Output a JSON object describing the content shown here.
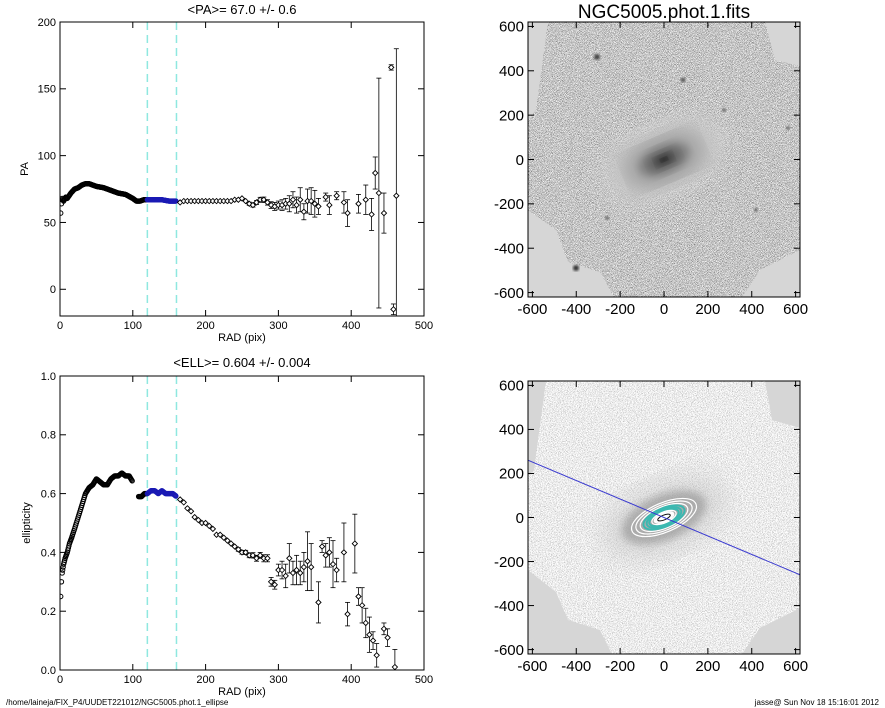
{
  "footer": {
    "path": "/home/laineja/FIX_P4/UUDET221012/NGC5005.phot.1_ellipse",
    "stamp": "jasse@  Sun Nov 18 15:16:01 2012"
  },
  "colors": {
    "guide": "#8fe8e0",
    "marker": "#1a1ab4",
    "majoraxis": "#3b3bd0",
    "contour_inner": "#3bb8b0"
  },
  "chart_data": [
    {
      "id": "pa",
      "type": "scatter",
      "title": "<PA>=  67.0 +/-   0.6",
      "xlabel": "RAD (pix)",
      "ylabel": "PA",
      "xlim": [
        0,
        500
      ],
      "ylim": [
        -20,
        200
      ],
      "xticks": [
        "0",
        "100",
        "200",
        "300",
        "400",
        "500"
      ],
      "xtick_values": [
        0,
        100,
        200,
        300,
        400,
        500
      ],
      "yticks": [
        "0",
        "50",
        "100",
        "150",
        "200"
      ],
      "ytick_values": [
        0,
        50,
        100,
        150,
        200
      ],
      "guides_x": [
        120,
        160
      ],
      "highlight_range": [
        120,
        160
      ],
      "dense_profile": {
        "x": [
          1,
          2,
          3,
          5,
          8,
          10,
          15,
          20,
          25,
          30,
          35,
          40,
          45,
          50,
          60,
          70,
          80,
          90,
          100,
          105,
          110,
          115,
          120,
          130,
          140,
          150,
          160
        ],
        "y": [
          57,
          64,
          68,
          66,
          69,
          68,
          72,
          75,
          76,
          78,
          79,
          79,
          78,
          77,
          76,
          74,
          72,
          71,
          68,
          66,
          66,
          67,
          67,
          67,
          67,
          66,
          66
        ]
      },
      "sparse_points": [
        {
          "x": 165,
          "y": 65,
          "err": 0.5
        },
        {
          "x": 170,
          "y": 66,
          "err": 0.5
        },
        {
          "x": 175,
          "y": 66,
          "err": 0.5
        },
        {
          "x": 180,
          "y": 66,
          "err": 0.5
        },
        {
          "x": 185,
          "y": 66,
          "err": 0.5
        },
        {
          "x": 190,
          "y": 66,
          "err": 0.5
        },
        {
          "x": 195,
          "y": 66,
          "err": 0.5
        },
        {
          "x": 200,
          "y": 66,
          "err": 0.5
        },
        {
          "x": 205,
          "y": 66,
          "err": 0.5
        },
        {
          "x": 210,
          "y": 66,
          "err": 0.5
        },
        {
          "x": 215,
          "y": 66,
          "err": 0.5
        },
        {
          "x": 220,
          "y": 66,
          "err": 0.5
        },
        {
          "x": 225,
          "y": 66,
          "err": 0.5
        },
        {
          "x": 230,
          "y": 66,
          "err": 0.6
        },
        {
          "x": 235,
          "y": 66,
          "err": 0.6
        },
        {
          "x": 240,
          "y": 67,
          "err": 0.7
        },
        {
          "x": 245,
          "y": 67,
          "err": 0.8
        },
        {
          "x": 250,
          "y": 68,
          "err": 1.0
        },
        {
          "x": 255,
          "y": 66,
          "err": 1.0
        },
        {
          "x": 260,
          "y": 64,
          "err": 1.2
        },
        {
          "x": 265,
          "y": 63,
          "err": 1.5
        },
        {
          "x": 270,
          "y": 65,
          "err": 1.5
        },
        {
          "x": 275,
          "y": 67,
          "err": 1.8
        },
        {
          "x": 280,
          "y": 67,
          "err": 2.0
        },
        {
          "x": 285,
          "y": 65,
          "err": 2.0
        },
        {
          "x": 290,
          "y": 63,
          "err": 2.5
        },
        {
          "x": 295,
          "y": 62,
          "err": 3.0
        },
        {
          "x": 300,
          "y": 63,
          "err": 3.0
        },
        {
          "x": 305,
          "y": 63,
          "err": 4.0
        },
        {
          "x": 310,
          "y": 64,
          "err": 4.0
        },
        {
          "x": 315,
          "y": 64,
          "err": 6.0
        },
        {
          "x": 320,
          "y": 67,
          "err": 6.0
        },
        {
          "x": 325,
          "y": 63,
          "err": 6.0
        },
        {
          "x": 330,
          "y": 67,
          "err": 9.0
        },
        {
          "x": 335,
          "y": 58,
          "err": 6.0
        },
        {
          "x": 340,
          "y": 66,
          "err": 9.0
        },
        {
          "x": 345,
          "y": 66,
          "err": 10.0
        },
        {
          "x": 350,
          "y": 64,
          "err": 10.0
        },
        {
          "x": 355,
          "y": 62,
          "err": 6.0
        },
        {
          "x": 365,
          "y": 69,
          "err": 3.0
        },
        {
          "x": 370,
          "y": 63,
          "err": 7.0
        },
        {
          "x": 380,
          "y": 70,
          "err": 3.0
        },
        {
          "x": 390,
          "y": 65,
          "err": 8.0
        },
        {
          "x": 395,
          "y": 57,
          "err": 10.0
        },
        {
          "x": 410,
          "y": 64,
          "err": 7.0
        },
        {
          "x": 420,
          "y": 67,
          "err": 11.0
        },
        {
          "x": 428,
          "y": 56,
          "err": 12.0
        },
        {
          "x": 433,
          "y": 87,
          "err": 12.0
        },
        {
          "x": 438,
          "y": 72,
          "err": 86.0
        },
        {
          "x": 445,
          "y": 57,
          "err": 15.0
        },
        {
          "x": 455,
          "y": 166,
          "err": 2.0
        },
        {
          "x": 458,
          "y": -15,
          "err": 4.0
        },
        {
          "x": 462,
          "y": 70,
          "err": 110.0
        }
      ]
    },
    {
      "id": "ell",
      "type": "scatter",
      "title": "<ELL>= 0.604 +/-  0.004",
      "xlabel": "RAD (pix)",
      "ylabel": "ellipticity",
      "xlim": [
        0,
        500
      ],
      "ylim": [
        0,
        1
      ],
      "xticks": [
        "0",
        "100",
        "200",
        "300",
        "400",
        "500"
      ],
      "xtick_values": [
        0,
        100,
        200,
        300,
        400,
        500
      ],
      "yticks": [
        "0.0",
        "0.2",
        "0.4",
        "0.6",
        "0.8",
        "1.0"
      ],
      "ytick_values": [
        0,
        0.2,
        0.4,
        0.6,
        0.8,
        1.0
      ],
      "guides_x": [
        120,
        160
      ],
      "highlight_range": [
        120,
        160
      ],
      "dense_profile": {
        "x": [
          1,
          2,
          3,
          5,
          7,
          10,
          13,
          16,
          20,
          25,
          30,
          35,
          40,
          45,
          50,
          55,
          60,
          65,
          70,
          75,
          80,
          85,
          90,
          95,
          100
        ],
        "y": [
          0.25,
          0.3,
          0.33,
          0.36,
          0.38,
          0.4,
          0.43,
          0.45,
          0.48,
          0.52,
          0.56,
          0.6,
          0.62,
          0.63,
          0.65,
          0.64,
          0.63,
          0.63,
          0.65,
          0.66,
          0.66,
          0.67,
          0.66,
          0.66,
          0.64
        ]
      },
      "dense_profile2": {
        "x": [
          108,
          112,
          116,
          120,
          125,
          130,
          135,
          140,
          145,
          150,
          155,
          160
        ],
        "y": [
          0.59,
          0.59,
          0.6,
          0.6,
          0.61,
          0.61,
          0.6,
          0.61,
          0.6,
          0.6,
          0.6,
          0.59
        ]
      },
      "sparse_points": [
        {
          "x": 165,
          "y": 0.58,
          "err": 0.003
        },
        {
          "x": 170,
          "y": 0.57,
          "err": 0.003
        },
        {
          "x": 175,
          "y": 0.55,
          "err": 0.003
        },
        {
          "x": 180,
          "y": 0.54,
          "err": 0.003
        },
        {
          "x": 185,
          "y": 0.52,
          "err": 0.003
        },
        {
          "x": 190,
          "y": 0.51,
          "err": 0.003
        },
        {
          "x": 195,
          "y": 0.5,
          "err": 0.003
        },
        {
          "x": 200,
          "y": 0.5,
          "err": 0.004
        },
        {
          "x": 205,
          "y": 0.49,
          "err": 0.004
        },
        {
          "x": 210,
          "y": 0.48,
          "err": 0.004
        },
        {
          "x": 215,
          "y": 0.46,
          "err": 0.004
        },
        {
          "x": 220,
          "y": 0.46,
          "err": 0.004
        },
        {
          "x": 225,
          "y": 0.45,
          "err": 0.005
        },
        {
          "x": 230,
          "y": 0.44,
          "err": 0.005
        },
        {
          "x": 235,
          "y": 0.43,
          "err": 0.005
        },
        {
          "x": 240,
          "y": 0.42,
          "err": 0.005
        },
        {
          "x": 245,
          "y": 0.41,
          "err": 0.006
        },
        {
          "x": 250,
          "y": 0.4,
          "err": 0.006
        },
        {
          "x": 255,
          "y": 0.4,
          "err": 0.007
        },
        {
          "x": 260,
          "y": 0.39,
          "err": 0.008
        },
        {
          "x": 265,
          "y": 0.39,
          "err": 0.009
        },
        {
          "x": 270,
          "y": 0.38,
          "err": 0.01
        },
        {
          "x": 275,
          "y": 0.39,
          "err": 0.01
        },
        {
          "x": 280,
          "y": 0.38,
          "err": 0.012
        },
        {
          "x": 285,
          "y": 0.38,
          "err": 0.012
        },
        {
          "x": 290,
          "y": 0.3,
          "err": 0.015
        },
        {
          "x": 295,
          "y": 0.29,
          "err": 0.015
        },
        {
          "x": 300,
          "y": 0.34,
          "err": 0.02
        },
        {
          "x": 305,
          "y": 0.34,
          "err": 0.03
        },
        {
          "x": 310,
          "y": 0.32,
          "err": 0.04
        },
        {
          "x": 315,
          "y": 0.38,
          "err": 0.05
        },
        {
          "x": 320,
          "y": 0.33,
          "err": 0.04
        },
        {
          "x": 325,
          "y": 0.34,
          "err": 0.05
        },
        {
          "x": 330,
          "y": 0.33,
          "err": 0.04
        },
        {
          "x": 335,
          "y": 0.35,
          "err": 0.05
        },
        {
          "x": 340,
          "y": 0.37,
          "err": 0.1
        },
        {
          "x": 345,
          "y": 0.35,
          "err": 0.08
        },
        {
          "x": 355,
          "y": 0.23,
          "err": 0.07
        },
        {
          "x": 360,
          "y": 0.42,
          "err": 0.02
        },
        {
          "x": 365,
          "y": 0.39,
          "err": 0.04
        },
        {
          "x": 370,
          "y": 0.4,
          "err": 0.05
        },
        {
          "x": 375,
          "y": 0.36,
          "err": 0.08
        },
        {
          "x": 380,
          "y": 0.34,
          "err": 0.04
        },
        {
          "x": 390,
          "y": 0.4,
          "err": 0.1
        },
        {
          "x": 395,
          "y": 0.19,
          "err": 0.04
        },
        {
          "x": 405,
          "y": 0.43,
          "err": 0.1
        },
        {
          "x": 410,
          "y": 0.25,
          "err": 0.03
        },
        {
          "x": 415,
          "y": 0.22,
          "err": 0.06
        },
        {
          "x": 420,
          "y": 0.16,
          "err": 0.05
        },
        {
          "x": 425,
          "y": 0.12,
          "err": 0.06
        },
        {
          "x": 430,
          "y": 0.1,
          "err": 0.03
        },
        {
          "x": 435,
          "y": 0.05,
          "err": 0.04
        },
        {
          "x": 445,
          "y": 0.14,
          "err": 0.02
        },
        {
          "x": 450,
          "y": 0.11,
          "err": 0.03
        },
        {
          "x": 460,
          "y": 0.01,
          "err": 0.06
        }
      ]
    },
    {
      "id": "image",
      "type": "heatmap",
      "title": "NGC5005.phot.1.fits",
      "xlim": [
        -620,
        620
      ],
      "ylim": [
        -620,
        620
      ],
      "xticks": [
        "-600",
        "-400",
        "-200",
        "0",
        "200",
        "400",
        "600"
      ],
      "xtick_values": [
        -600,
        -400,
        -200,
        0,
        200,
        400,
        600
      ],
      "yticks": [
        "-600",
        "-400",
        "-200",
        "0",
        "200",
        "400",
        "600"
      ],
      "ytick_values": [
        -600,
        -400,
        -200,
        0,
        200,
        400,
        600
      ],
      "galaxy": {
        "center": [
          0,
          0
        ],
        "semi_major": 170,
        "ellipticity": 0.6,
        "pa_deg": 67
      }
    },
    {
      "id": "contours",
      "type": "heatmap",
      "title": "",
      "xlim": [
        -620,
        620
      ],
      "ylim": [
        -620,
        620
      ],
      "xticks": [
        "-600",
        "-400",
        "-200",
        "0",
        "200",
        "400",
        "600"
      ],
      "xtick_values": [
        -600,
        -400,
        -200,
        0,
        200,
        400,
        600
      ],
      "yticks": [
        "-600",
        "-400",
        "-200",
        "0",
        "200",
        "400",
        "600"
      ],
      "ytick_values": [
        -600,
        -400,
        -200,
        0,
        200,
        400,
        600
      ],
      "galaxy": {
        "center": [
          0,
          0
        ],
        "semi_major": 170,
        "ellipticity": 0.6,
        "pa_deg": 67
      },
      "major_axis_line": {
        "x": [
          -620,
          620
        ],
        "y": [
          260,
          -260
        ]
      }
    }
  ]
}
